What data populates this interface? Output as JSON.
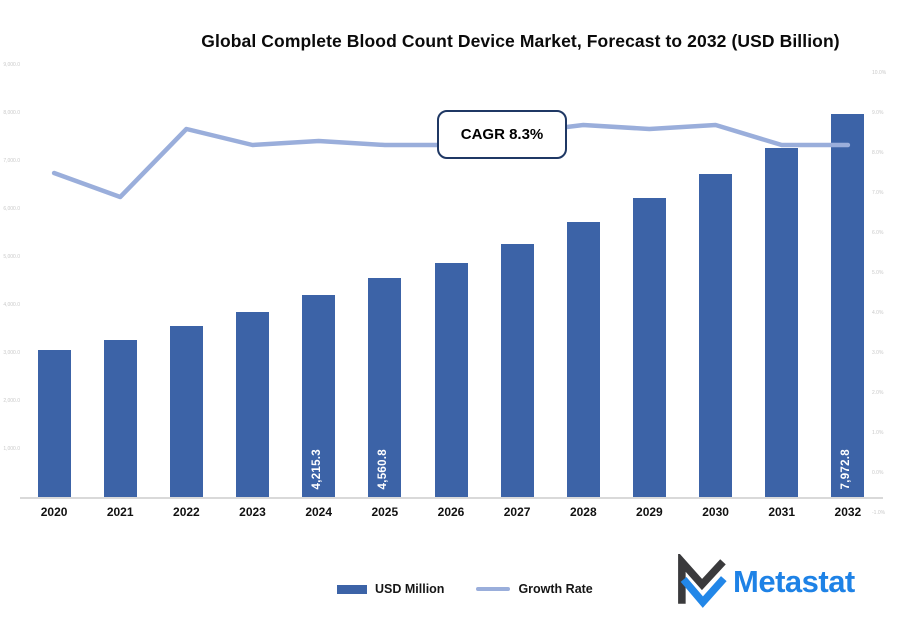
{
  "title": "Global Complete Blood Count Device Market, Forecast to 2032 (USD Billion)",
  "annotation": {
    "text": "CAGR 8.3%"
  },
  "legend": {
    "position": "bottom",
    "items": [
      {
        "label": "USD Million",
        "swatch": "bar"
      },
      {
        "label": "Growth Rate",
        "swatch": "line"
      }
    ]
  },
  "logo": {
    "text": "Metastat"
  },
  "colors": {
    "bar": "#3C63A7",
    "line": "#9AAEDB",
    "cagr_border": "#1F3864",
    "axis_line": "#D9D9D9",
    "tick_text": "#C9C9C9",
    "logo_dark": "#3A3A3C",
    "logo_blue": "#2287E8",
    "logo_text": "#1E82E6"
  },
  "chart_data": {
    "type": "bar",
    "subtype": "bar-line-combo",
    "title": "Global Complete Blood Count Device Market, Forecast to 2032 (USD Billion)",
    "categories": [
      "2020",
      "2021",
      "2022",
      "2023",
      "2024",
      "2025",
      "2026",
      "2027",
      "2028",
      "2029",
      "2030",
      "2031",
      "2032"
    ],
    "series": [
      {
        "name": "USD Million",
        "type": "bar",
        "axis": "left",
        "values": [
          3060,
          3270,
          3560,
          3855,
          4215.3,
          4560.8,
          4875,
          5270,
          5730,
          6230,
          6730,
          7270,
          7972.8
        ],
        "data_labels": [
          "",
          "",
          "",
          "",
          "4,215.3",
          "4,560.8",
          "",
          "",
          "",
          "",
          "",
          "",
          "7,972.8"
        ],
        "values_estimated_except_labeled": true
      },
      {
        "name": "Growth Rate",
        "type": "line",
        "axis": "right",
        "values": [
          7.5,
          6.9,
          8.6,
          8.2,
          8.3,
          8.2,
          8.2,
          8.5,
          8.7,
          8.6,
          8.7,
          8.2,
          8.2
        ],
        "unit": "%",
        "values_estimated": true
      }
    ],
    "annotation": "CAGR 8.3%",
    "left_axis": {
      "min": 0,
      "max": 9000,
      "tick_step": 1000,
      "labels_faint": true
    },
    "right_axis": {
      "min": -0.6,
      "max": 10.2,
      "tick_values": [
        -1,
        0,
        1,
        2,
        3,
        4,
        5,
        6,
        7,
        8,
        9,
        10
      ],
      "labels_faint": true
    },
    "gridlines": false,
    "legend_position": "bottom"
  }
}
